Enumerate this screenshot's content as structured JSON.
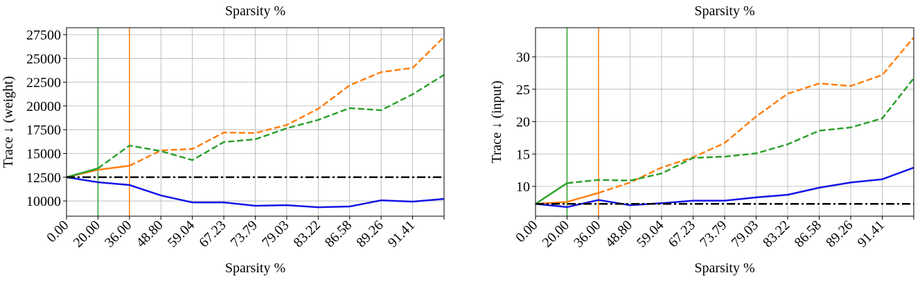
{
  "chart_data": [
    {
      "type": "line",
      "title": "Sparsity %",
      "x_label": "Sparsity %",
      "y_label": "Trace ↓  (weight)",
      "categories": [
        "0.00",
        "20.00",
        "36.00",
        "48.80",
        "59.04",
        "67.23",
        "73.79",
        "79.03",
        "83.22",
        "86.58",
        "89.26",
        "91.41",
        null
      ],
      "ylim": [
        8400,
        28230
      ],
      "yticks": [
        10000,
        12500,
        15000,
        17500,
        20000,
        22500,
        25000,
        27500
      ],
      "grid": true,
      "vlines": [
        {
          "x": 1,
          "color": "#2ca02c"
        },
        {
          "x": 2,
          "color": "#ff7f0e"
        }
      ],
      "series": [
        {
          "color": "#ff7f0e",
          "linestyle": "dashed",
          "solid_through": 2,
          "values": [
            12500,
            13280,
            13700,
            15320,
            15470,
            17200,
            17150,
            18000,
            19700,
            22170,
            23560,
            24000,
            27270
          ]
        },
        {
          "color": "#2ca02c",
          "linestyle": "dashed",
          "solid_through": 1,
          "values": [
            12500,
            13430,
            15830,
            15250,
            14300,
            16200,
            16490,
            17650,
            18530,
            19770,
            19550,
            21220,
            23270
          ]
        },
        {
          "color": "#1414e6",
          "linestyle": "solid",
          "values": [
            12500,
            11970,
            11680,
            10580,
            9850,
            9850,
            9490,
            9560,
            9340,
            9420,
            10070,
            9930,
            10220
          ]
        },
        {
          "color": "#000000",
          "linestyle": "dashdot",
          "values": [
            12500,
            12500,
            12500,
            12500,
            12500,
            12500,
            12500,
            12500,
            12500,
            12500,
            12500,
            12500,
            12500
          ]
        }
      ]
    },
    {
      "type": "line",
      "title": "Sparsity %",
      "x_label": "Sparsity %",
      "y_label": "Trace ↓  (input)",
      "categories": [
        "0.00",
        "20.00",
        "36.00",
        "48.80",
        "59.04",
        "67.23",
        "73.79",
        "79.03",
        "83.22",
        "86.58",
        "89.26",
        "91.41",
        null
      ],
      "ylim": [
        5.4,
        34.5
      ],
      "yticks": [
        10,
        15,
        20,
        25,
        30
      ],
      "grid": true,
      "vlines": [
        {
          "x": 1,
          "color": "#2ca02c"
        },
        {
          "x": 2,
          "color": "#ff7f0e"
        }
      ],
      "series": [
        {
          "color": "#ff7f0e",
          "linestyle": "dashed",
          "solid_through": 2,
          "values": [
            7.3,
            7.6,
            9.0,
            10.6,
            12.9,
            14.5,
            16.7,
            20.8,
            24.3,
            25.9,
            25.5,
            27.2,
            33.0
          ]
        },
        {
          "color": "#2ca02c",
          "linestyle": "dashed",
          "solid_through": 1,
          "values": [
            7.3,
            10.5,
            11.0,
            10.9,
            12.0,
            14.4,
            14.6,
            15.1,
            16.5,
            18.6,
            19.1,
            20.5,
            26.7
          ]
        },
        {
          "color": "#1414e6",
          "linestyle": "solid",
          "values": [
            7.3,
            6.8,
            7.9,
            7.1,
            7.4,
            7.8,
            7.8,
            8.3,
            8.7,
            9.8,
            10.6,
            11.1,
            12.9
          ]
        },
        {
          "color": "#000000",
          "linestyle": "dashdot",
          "values": [
            7.3,
            7.3,
            7.3,
            7.3,
            7.3,
            7.3,
            7.3,
            7.3,
            7.3,
            7.3,
            7.3,
            7.3,
            7.3
          ]
        }
      ]
    }
  ]
}
